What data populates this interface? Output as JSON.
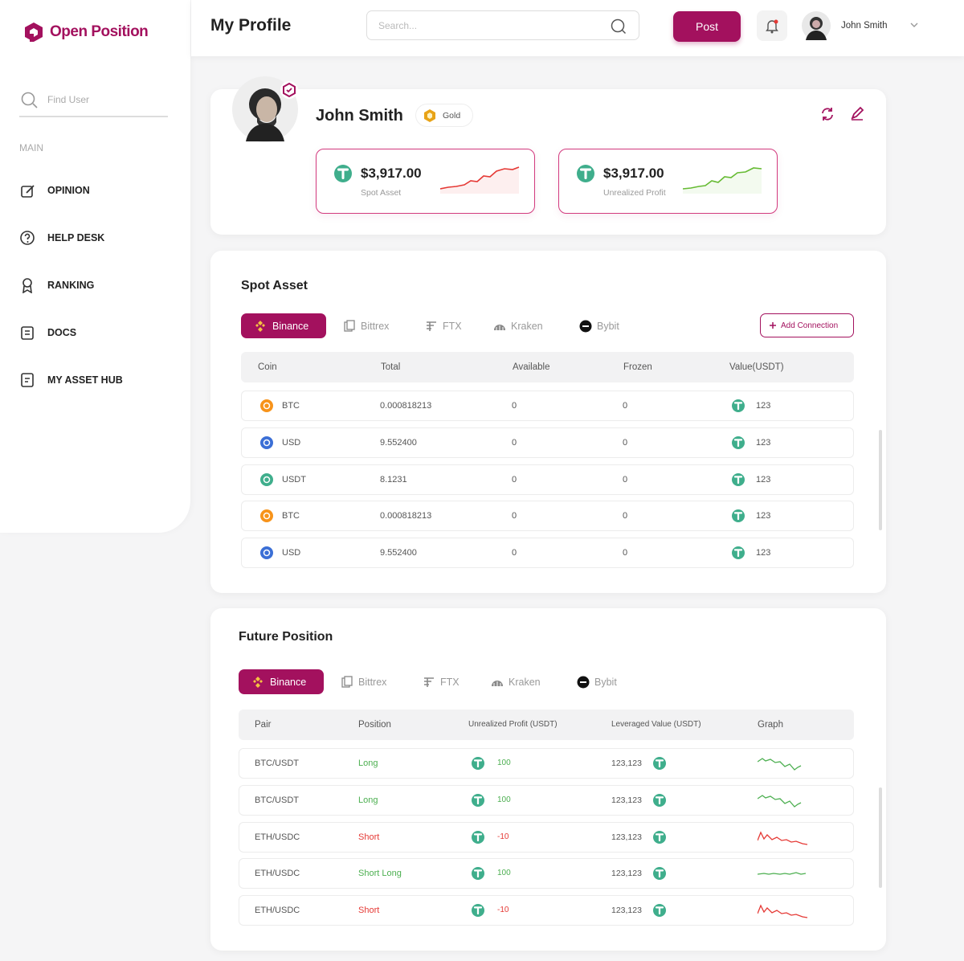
{
  "brand": "Open Position",
  "sidebar": {
    "search_placeholder": "Find User",
    "section": "MAIN",
    "items": [
      "OPINION",
      "HELP DESK",
      "RANKING",
      "DOCS",
      "MY ASSET HUB"
    ]
  },
  "header": {
    "title": "My Profile",
    "search_placeholder": "Search...",
    "post_button": "Post",
    "user_name": "John Smith"
  },
  "profile": {
    "name": "John Smith",
    "badge": "Gold",
    "cards": [
      {
        "amount": "$3,917.00",
        "label": "Spot Asset",
        "color": "#e53935"
      },
      {
        "amount": "$3,917.00",
        "label": "Unrealized Profit",
        "color": "#66bb33"
      }
    ]
  },
  "spot_asset": {
    "title": "Spot Asset",
    "tabs": [
      "Binance",
      "Bittrex",
      "FTX",
      "Kraken",
      "Bybit"
    ],
    "add_button": "Add Connection",
    "columns": [
      "Coin",
      "Total",
      "Available",
      "Frozen",
      "Value(USDT)"
    ],
    "rows": [
      {
        "coin": "BTC",
        "coin_color": "#f7931a",
        "total": "0.000818213",
        "available": "0",
        "frozen": "0",
        "value": "123"
      },
      {
        "coin": "USD",
        "coin_color": "#3b6fd6",
        "total": "9.552400",
        "available": "0",
        "frozen": "0",
        "value": "123"
      },
      {
        "coin": "USDT",
        "coin_color": "#3fae8c",
        "total": "8.1231",
        "available": "0",
        "frozen": "0",
        "value": "123"
      },
      {
        "coin": "BTC",
        "coin_color": "#f7931a",
        "total": "0.000818213",
        "available": "0",
        "frozen": "0",
        "value": "123"
      },
      {
        "coin": "USD",
        "coin_color": "#3b6fd6",
        "total": "9.552400",
        "available": "0",
        "frozen": "0",
        "value": "123"
      }
    ]
  },
  "future_position": {
    "title": "Future Position",
    "tabs": [
      "Binance",
      "Bittrex",
      "FTX",
      "Kraken",
      "Bybit"
    ],
    "columns": [
      "Pair",
      "Position",
      "Unrealized Profit (USDT)",
      "Leveraged Value (USDT)",
      "Graph"
    ],
    "rows": [
      {
        "pair": "BTC/USDT",
        "position": "Long",
        "position_color": "#4caf50",
        "profit": "100",
        "profit_color": "#4caf50",
        "leveraged": "123,123",
        "graph_color": "#4caf50"
      },
      {
        "pair": "BTC/USDT",
        "position": "Long",
        "position_color": "#4caf50",
        "profit": "100",
        "profit_color": "#4caf50",
        "leveraged": "123,123",
        "graph_color": "#4caf50"
      },
      {
        "pair": "ETH/USDC",
        "position": "Short",
        "position_color": "#e53935",
        "profit": "-10",
        "profit_color": "#e53935",
        "leveraged": "123,123",
        "graph_color": "#e53935"
      },
      {
        "pair": "ETH/USDC",
        "position": "Short Long",
        "position_color": "#4caf50",
        "profit": "100",
        "profit_color": "#4caf50",
        "leveraged": "123,123",
        "graph_color": "#4caf50"
      },
      {
        "pair": "ETH/USDC",
        "position": "Short",
        "position_color": "#e53935",
        "profit": "-10",
        "profit_color": "#e53935",
        "leveraged": "123,123",
        "graph_color": "#e53935"
      }
    ]
  }
}
